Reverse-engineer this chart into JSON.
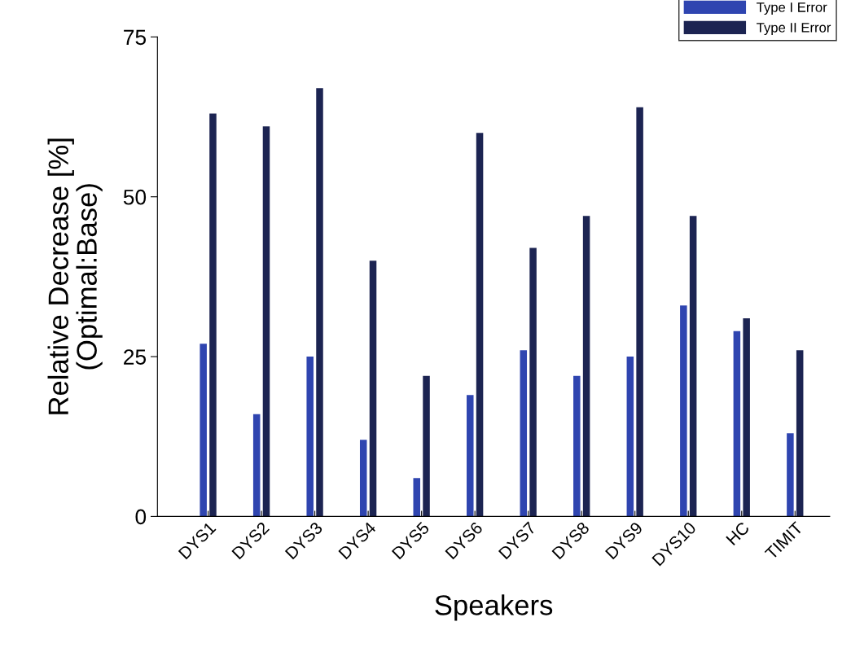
{
  "chart_data": {
    "type": "bar",
    "xlabel": "Speakers",
    "ylabel": "Relative Decrease [%]\n(Optimal:Base)",
    "categories": [
      "DYS1",
      "DYS2",
      "DYS3",
      "DYS4",
      "DYS5",
      "DYS6",
      "DYS7",
      "DYS8",
      "DYS9",
      "DYS10",
      "HC",
      "TIMIT"
    ],
    "series": [
      {
        "name": "Type I Error",
        "color": "#2f45b0",
        "values": [
          27,
          16,
          25,
          12,
          6,
          19,
          26,
          22,
          25,
          33,
          29,
          13
        ]
      },
      {
        "name": "Type II Error",
        "color": "#1c2452",
        "values": [
          63,
          61,
          67,
          40,
          22,
          60,
          42,
          47,
          64,
          47,
          31,
          26
        ]
      }
    ],
    "ylim": [
      0,
      75
    ],
    "yticks": [
      0,
      25,
      50,
      75
    ],
    "grid": false,
    "legend": "top right"
  }
}
